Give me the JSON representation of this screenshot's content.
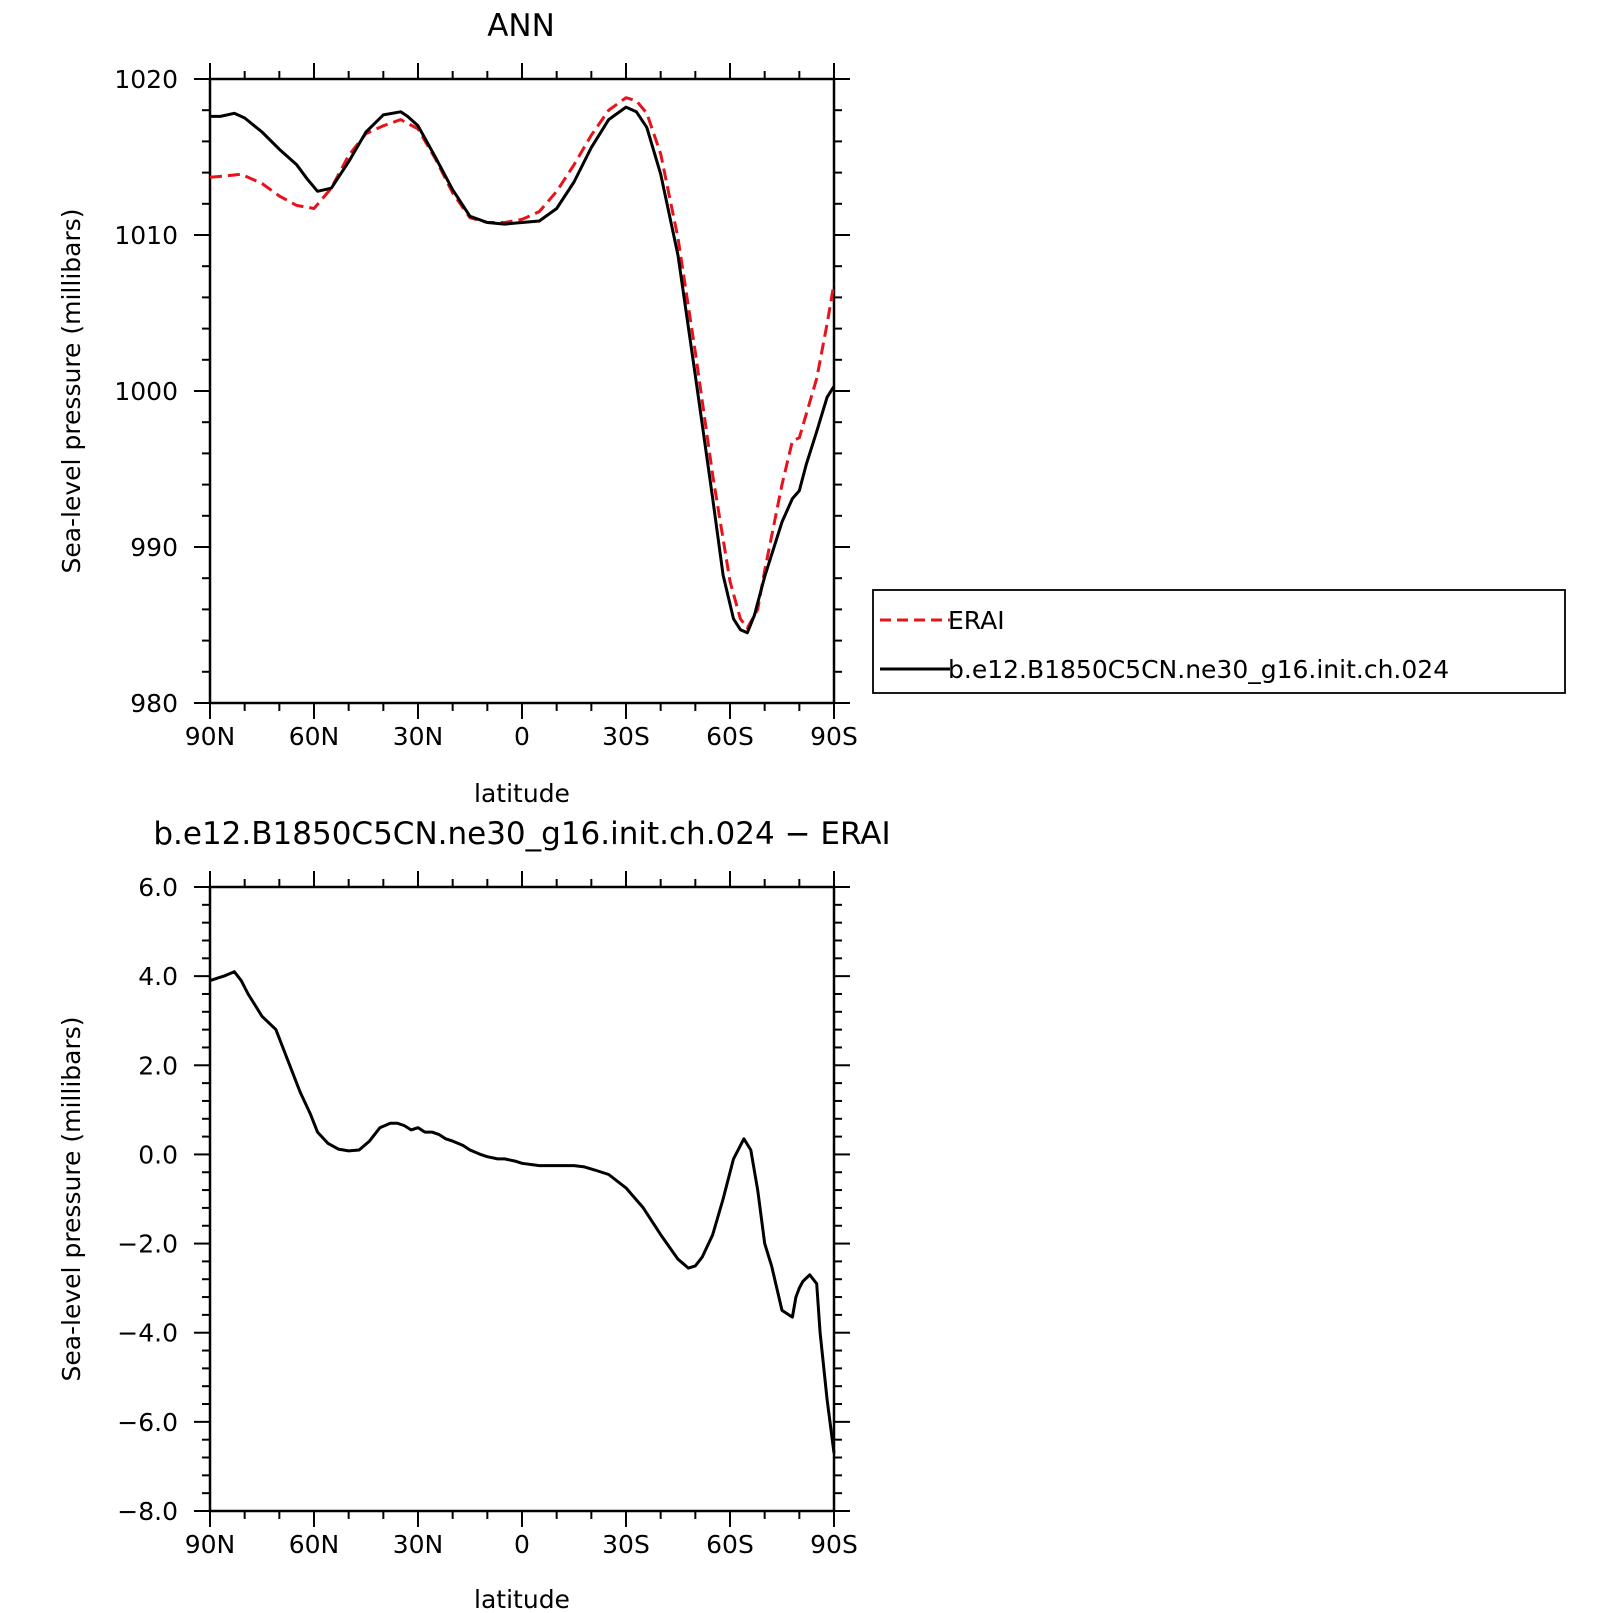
{
  "chart_data": [
    {
      "type": "line",
      "title": "ANN",
      "xlabel": "latitude",
      "ylabel": "Sea-level pressure (millibars)",
      "xlim": [
        90,
        -90
      ],
      "ylim": [
        980,
        1020
      ],
      "xticks": [
        90,
        60,
        30,
        0,
        -30,
        -60,
        -90
      ],
      "xtick_labels": [
        "90N",
        "60N",
        "30N",
        "0",
        "30S",
        "60S",
        "90S"
      ],
      "yticks": [
        980,
        990,
        1000,
        1010,
        1020
      ],
      "ytick_labels": [
        "980",
        "990",
        "1000",
        "1010",
        "1020"
      ],
      "grid": false,
      "legend_position": "right",
      "series": [
        {
          "name": "ERAI",
          "color": "#e8131a",
          "style": "dashed",
          "x": [
            90,
            85,
            81,
            75,
            70,
            65,
            60,
            55,
            50,
            45,
            40,
            35,
            30,
            25,
            20,
            15,
            10,
            5,
            0,
            -5,
            -10,
            -15,
            -20,
            -25,
            -30,
            -33,
            -36,
            -40,
            -45,
            -50,
            -55,
            -60,
            -63,
            -65,
            -68,
            -70,
            -75,
            -78,
            -80,
            -85,
            -88,
            -90
          ],
          "y": [
            1013.7,
            1013.8,
            1013.9,
            1013.3,
            1012.5,
            1011.9,
            1011.7,
            1013.0,
            1015.1,
            1016.5,
            1017.0,
            1017.4,
            1016.8,
            1014.9,
            1012.7,
            1011.1,
            1010.8,
            1010.8,
            1011.0,
            1011.5,
            1012.8,
            1014.5,
            1016.4,
            1018.0,
            1018.8,
            1018.6,
            1017.8,
            1015.2,
            1009.8,
            1002.5,
            994.6,
            987.8,
            985.4,
            984.8,
            986.0,
            988.5,
            994.0,
            996.8,
            997.0,
            1000.8,
            1004.3,
            1006.9
          ]
        },
        {
          "name": "b.e12.B1850C5CN.ne30_g16.init.ch.024",
          "color": "#000000",
          "style": "solid",
          "x": [
            90,
            87,
            83,
            80,
            75,
            70,
            65,
            62,
            59,
            55,
            50,
            45,
            40,
            35,
            33,
            30,
            25,
            20,
            15,
            10,
            5,
            0,
            -5,
            -10,
            -15,
            -20,
            -25,
            -30,
            -33,
            -36,
            -40,
            -45,
            -50,
            -55,
            -58,
            -61,
            -63,
            -65,
            -67,
            -70,
            -75,
            -78,
            -80,
            -82,
            -85,
            -88,
            -90
          ],
          "y": [
            1017.6,
            1017.6,
            1017.8,
            1017.5,
            1016.6,
            1015.5,
            1014.5,
            1013.6,
            1012.8,
            1013.0,
            1014.7,
            1016.6,
            1017.7,
            1017.9,
            1017.6,
            1017.0,
            1015.0,
            1012.9,
            1011.2,
            1010.8,
            1010.7,
            1010.8,
            1010.9,
            1011.7,
            1013.4,
            1015.6,
            1017.4,
            1018.2,
            1017.9,
            1016.9,
            1013.9,
            1008.7,
            1001.0,
            993.1,
            988.2,
            985.4,
            984.7,
            984.5,
            985.6,
            988.1,
            991.6,
            993.1,
            993.6,
            995.3,
            997.4,
            999.6,
            1000.3
          ]
        }
      ]
    },
    {
      "type": "line",
      "title": "b.e12.B1850C5CN.ne30_g16.init.ch.024 − ERAI",
      "xlabel": "latitude",
      "ylabel": "Sea-level pressure (millibars)",
      "xlim": [
        90,
        -90
      ],
      "ylim": [
        -8,
        6
      ],
      "xticks": [
        90,
        60,
        30,
        0,
        -30,
        -60,
        -90
      ],
      "xtick_labels": [
        "90N",
        "60N",
        "30N",
        "0",
        "30S",
        "60S",
        "90S"
      ],
      "yticks": [
        -8,
        -6,
        -4,
        -2,
        0,
        2,
        4,
        6
      ],
      "ytick_labels": [
        "−8.0",
        "−6.0",
        "−4.0",
        "−2.0",
        "0.0",
        "2.0",
        "4.0",
        "6.0"
      ],
      "grid": false,
      "series": [
        {
          "color": "#000000",
          "style": "solid",
          "x": [
            90,
            86,
            83,
            81,
            79,
            75,
            71,
            68,
            64,
            61,
            59,
            56,
            53,
            50,
            47,
            44,
            41,
            38,
            36,
            34,
            32,
            30,
            28,
            26,
            24,
            22,
            20,
            17,
            15,
            12,
            10,
            7,
            5,
            2,
            0,
            -5,
            -10,
            -15,
            -18,
            -21,
            -25,
            -30,
            -35,
            -40,
            -45,
            -48,
            -50,
            -52,
            -55,
            -58,
            -61,
            -64,
            -66,
            -68,
            -70,
            -72,
            -75,
            -78,
            -79,
            -80,
            -81,
            -83,
            -85,
            -86,
            -88,
            -90
          ],
          "y": [
            3.9,
            4.0,
            4.1,
            3.9,
            3.6,
            3.1,
            2.8,
            2.2,
            1.4,
            0.9,
            0.5,
            0.25,
            0.12,
            0.08,
            0.1,
            0.3,
            0.6,
            0.7,
            0.7,
            0.65,
            0.55,
            0.6,
            0.5,
            0.5,
            0.45,
            0.35,
            0.3,
            0.2,
            0.1,
            0.0,
            -0.05,
            -0.1,
            -0.1,
            -0.15,
            -0.2,
            -0.25,
            -0.25,
            -0.25,
            -0.28,
            -0.35,
            -0.45,
            -0.75,
            -1.2,
            -1.8,
            -2.35,
            -2.55,
            -2.5,
            -2.3,
            -1.8,
            -1.0,
            -0.1,
            0.35,
            0.1,
            -0.8,
            -2.0,
            -2.5,
            -3.5,
            -3.65,
            -3.2,
            -3.0,
            -2.85,
            -2.7,
            -2.9,
            -4.0,
            -5.5,
            -6.7
          ]
        }
      ]
    }
  ]
}
